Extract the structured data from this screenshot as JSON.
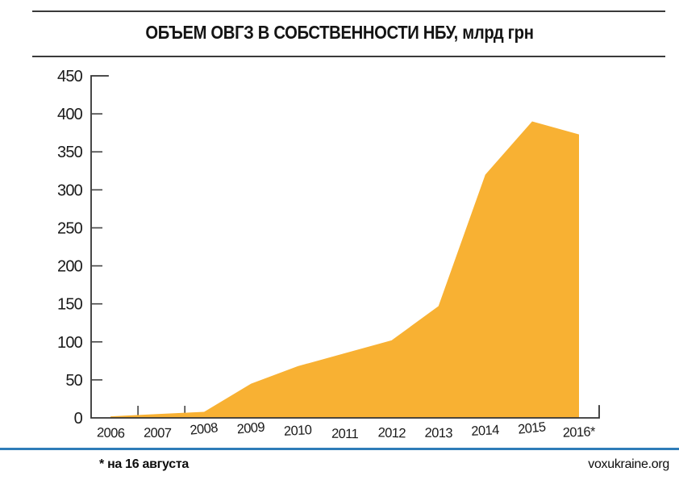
{
  "header": {
    "title": "ОБЪЕМ ОВГЗ В СОБСТВЕННОСТИ НБУ, млрд грн"
  },
  "footer": {
    "footnote": "* на 16 августа",
    "site": "voxukraine.org",
    "accent_color": "#2e7cb8"
  },
  "chart_data": {
    "type": "area",
    "title": "ОБЪЕМ ОВГЗ В СОБСТВЕННОСТИ НБУ, млрд грн",
    "categories": [
      "2006",
      "2007",
      "2008",
      "2009",
      "2010",
      "2011",
      "2012",
      "2013",
      "2014",
      "2015",
      "2016*"
    ],
    "values": [
      2,
      5,
      8,
      45,
      68,
      85,
      102,
      147,
      320,
      390,
      373
    ],
    "xlabel": "",
    "ylabel": "",
    "ylim": [
      0,
      450
    ],
    "yticks": [
      0,
      50,
      100,
      150,
      200,
      250,
      300,
      350,
      400,
      450
    ],
    "grid": false,
    "legend": false,
    "fill_color": "#f8b133",
    "axis_color": "#333333",
    "note": "* на 16 августа"
  }
}
